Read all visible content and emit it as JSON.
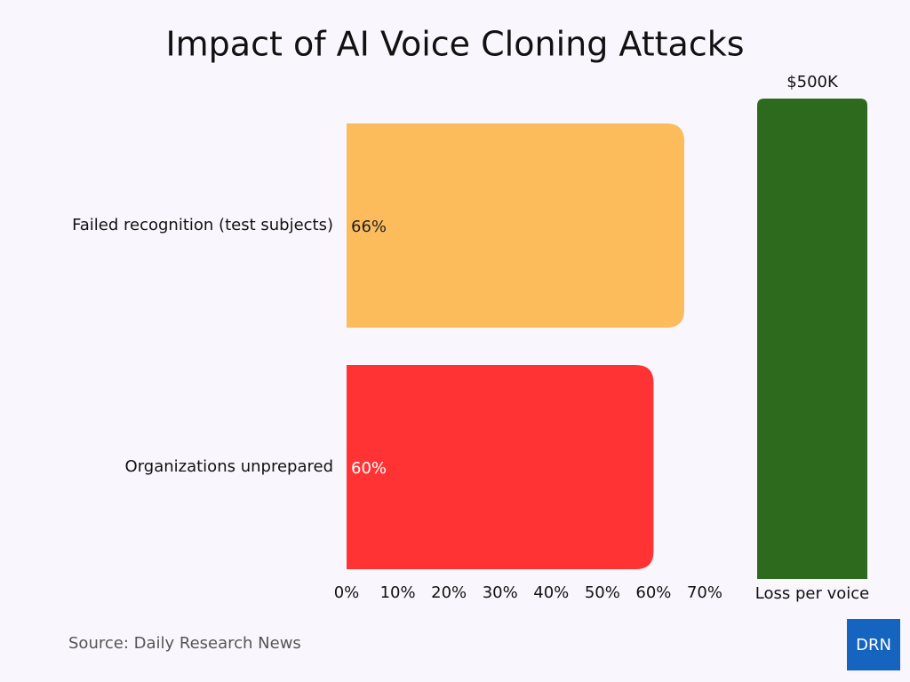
{
  "chart_data": [
    {
      "type": "hbar",
      "title": "Impact of AI Voice Cloning Attacks",
      "categories": [
        "Failed recognition (test subjects)",
        "Organizations unprepared"
      ],
      "values": [
        66,
        60
      ],
      "value_labels": [
        "66%",
        "60%"
      ],
      "colors": [
        "#fcbc5c",
        "#ff3333"
      ],
      "xlim": [
        0,
        70
      ],
      "xticks": [
        {
          "value": 0,
          "label": "0%"
        },
        {
          "value": 10,
          "label": "10%"
        },
        {
          "value": 20,
          "label": "20%"
        },
        {
          "value": 30,
          "label": "30%"
        },
        {
          "value": 40,
          "label": "40%"
        },
        {
          "value": 50,
          "label": "50%"
        },
        {
          "value": 60,
          "label": "60%"
        },
        {
          "value": 70,
          "label": "70%"
        }
      ]
    },
    {
      "type": "bar",
      "categories": [
        "Loss per voice"
      ],
      "values": [
        500000
      ],
      "value_labels": [
        "$500K"
      ],
      "color": "#2e6a1e"
    }
  ],
  "source": "Source: Daily Research News",
  "logo": "DRN"
}
